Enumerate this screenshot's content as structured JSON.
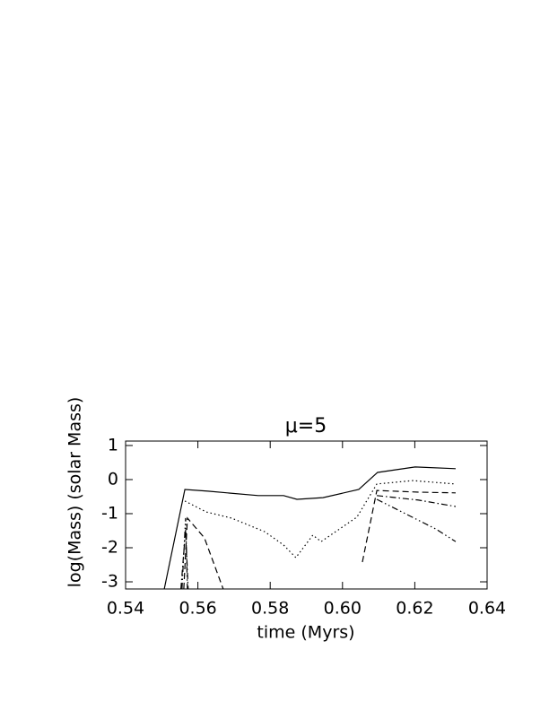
{
  "chart_data": {
    "type": "line",
    "title": "μ=5",
    "xlabel": "time (Myrs)",
    "ylabel": "log(Mass) (solar Mass)",
    "xlim": [
      0.54,
      0.64
    ],
    "ylim": [
      -3.21,
      1.13
    ],
    "xticks": [
      0.54,
      0.56,
      0.58,
      {
        "value": 0.6,
        "label": "0.60"
      },
      0.62,
      0.64
    ],
    "yticks": [
      -3,
      -2,
      -1,
      0,
      1
    ],
    "series": [
      {
        "color": "#000000",
        "dash": "solid",
        "x": [
          0.5507,
          0.5564,
          0.5628,
          0.5767,
          0.5837,
          0.5874,
          0.5946,
          0.6045,
          0.6097,
          0.6201,
          0.6313
        ],
        "values": [
          -3.21,
          -0.29,
          -0.34,
          -0.47,
          -0.47,
          -0.58,
          -0.53,
          -0.29,
          0.21,
          0.37,
          0.32
        ]
      },
      {
        "color": "#000000",
        "dash": "dotted",
        "x": [
          0.5564,
          0.5623,
          0.5693,
          0.5785,
          0.5837,
          0.5871,
          0.5918,
          0.5941,
          0.604,
          0.6095,
          0.6194,
          0.6313
        ],
        "values": [
          -0.63,
          -0.95,
          -1.13,
          -1.53,
          -1.92,
          -2.29,
          -1.63,
          -1.82,
          -1.1,
          -0.13,
          -0.03,
          -0.13
        ]
      },
      {
        "color": "#000000",
        "dash": "dashed",
        "x": [
          0.5561,
          0.5571,
          0.5618,
          0.567,
          0.604,
          0.6055,
          0.6095,
          0.6214,
          0.6313
        ],
        "values": [
          -3.21,
          -1.13,
          -1.71,
          -3.21,
          null,
          -2.42,
          -0.32,
          -0.37,
          -0.39
        ]
      },
      {
        "color": "#000000",
        "dash": "dashdot",
        "x": [
          0.5553,
          0.5566,
          0.5573,
          0.6085,
          0.6095,
          0.6209,
          0.6313
        ],
        "values": [
          -3.21,
          -1.45,
          -3.21,
          null,
          -0.47,
          -0.6,
          -0.79
        ]
      },
      {
        "color": "#000000",
        "dash": "dashdotdot",
        "x": [
          0.5556,
          0.5566,
          0.5571,
          0.609,
          0.6095,
          0.6258,
          0.6313
        ],
        "values": [
          -3.21,
          -1.13,
          -3.21,
          null,
          -0.58,
          -1.45,
          -1.82
        ]
      }
    ]
  }
}
